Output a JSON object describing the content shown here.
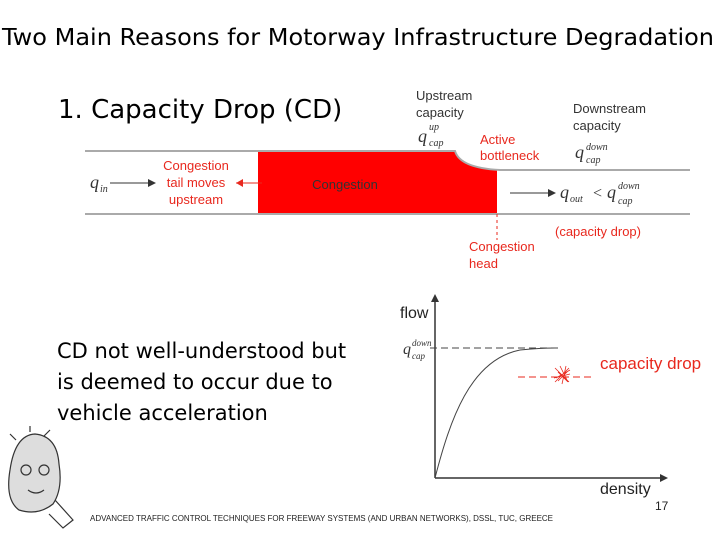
{
  "title": "Two Main Reasons for Motorway Infrastructure Degradation",
  "heading": "1. Capacity Drop (CD)",
  "diagram": {
    "upstream_capacity": [
      "Upstream",
      "capacity"
    ],
    "upstream_symbol": {
      "base": "q",
      "sup": "up",
      "sub": "cap"
    },
    "downstream_capacity": [
      "Downstream",
      "capacity"
    ],
    "downstream_symbol": {
      "base": "q",
      "sup": "down",
      "sub": "cap"
    },
    "active_bottleneck": [
      "Active",
      "bottleneck"
    ],
    "congestion_tail": [
      "Congestion",
      "tail moves",
      "upstream"
    ],
    "congestion": "Congestion",
    "inflow_symbol": {
      "base": "q",
      "sub": "in"
    },
    "outflow": {
      "base": "q",
      "sub": "out",
      "relation": "<",
      "rhs": {
        "base": "q",
        "sup": "down",
        "sub": "cap"
      }
    },
    "capacity_drop_note": "(capacity drop)",
    "congestion_head": [
      "Congestion",
      "head"
    ]
  },
  "body": [
    "CD not well-understood but",
    "is deemed to occur due to",
    "vehicle acceleration"
  ],
  "graph": {
    "y_label": "flow",
    "x_label": "density",
    "capacity_symbol": {
      "base": "q",
      "sup": "down",
      "sub": "cap"
    },
    "annotation": "capacity drop"
  },
  "footer": "ADVANCED TRAFFIC CONTROL TECHNIQUES FOR FREEWAY SYSTEMS (AND URBAN NETWORKS), DSSL, TUC, GREECE",
  "page_number": "17"
}
